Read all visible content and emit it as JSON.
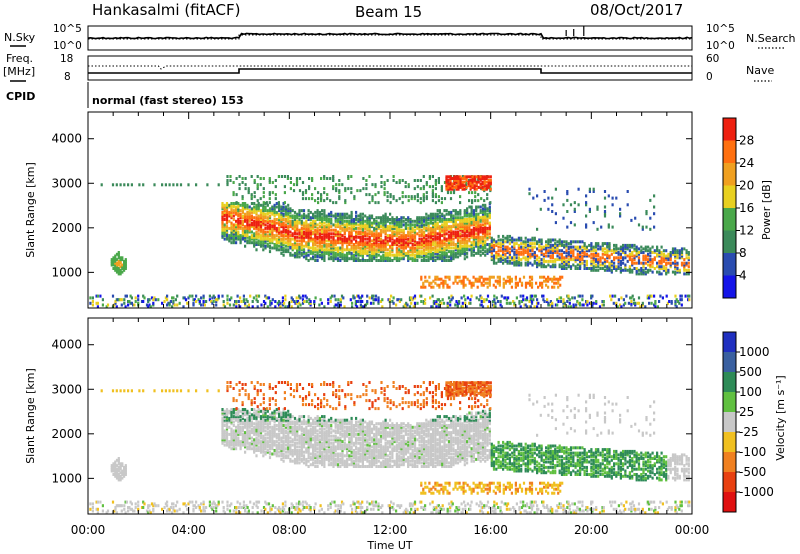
{
  "header": {
    "station": "Hankasalmi (fitACF)",
    "beam": "Beam 15",
    "date": "08/Oct/2017"
  },
  "top_panels": {
    "nsky_label": "N.Sky",
    "nsearch_label": "N.Search",
    "noise_ticks": [
      "10^5",
      "10^0"
    ],
    "freq_label_1": "Freq.",
    "freq_label_2": "[MHz]",
    "freq_ticks": [
      "18",
      "8"
    ],
    "nave_label": "Nave",
    "nave_ticks": [
      "60",
      "0"
    ],
    "cpid_label": "CPID",
    "cpid_text": "normal (fast stereo) 153"
  },
  "chart_data": [
    {
      "type": "heatmap",
      "name_key": "power",
      "ylabel": "Slant Range [km]",
      "xlabel": "",
      "x_ticks": [
        "00:00",
        "04:00",
        "08:00",
        "12:00",
        "16:00",
        "20:00",
        "00:00"
      ],
      "y_ticks": [
        1000,
        2000,
        3000,
        4000
      ],
      "xlim_hours": [
        0,
        24
      ],
      "ylim_km": [
        200,
        4600
      ],
      "colorbar": {
        "label": "Power [dB]",
        "ticks": [
          "4",
          "8",
          "12",
          "16",
          "20",
          "24",
          "28"
        ],
        "colors": [
          "#1515e8",
          "#2a4cb0",
          "#3b8a5a",
          "#4aa84a",
          "#e8d020",
          "#f0a020",
          "#ff7010",
          "#ee2010"
        ]
      },
      "regions": [
        {
          "t0": 5.2,
          "t1": 16.0,
          "r0": 1400,
          "r1": 2500,
          "note": "main backscatter band"
        },
        {
          "t0": 16.0,
          "t1": 23.8,
          "r0": 1100,
          "r1": 1900,
          "note": "evening band"
        },
        {
          "t0": 0.9,
          "t1": 1.5,
          "r0": 1000,
          "r1": 1500,
          "note": "early patch"
        },
        {
          "t0": 14.2,
          "t1": 16.0,
          "r0": 2900,
          "r1": 3200,
          "note": "far range"
        },
        {
          "t0": 13.2,
          "t1": 18.8,
          "r0": 700,
          "r1": 1000,
          "note": "near range"
        }
      ]
    },
    {
      "type": "heatmap",
      "name_key": "velocity",
      "ylabel": "Slant Range [km]",
      "xlabel": "Time UT",
      "x_ticks": [
        "00:00",
        "04:00",
        "08:00",
        "12:00",
        "16:00",
        "20:00",
        "00:00"
      ],
      "y_ticks": [
        1000,
        2000,
        3000,
        4000
      ],
      "xlim_hours": [
        0,
        24
      ],
      "ylim_km": [
        200,
        4600
      ],
      "colorbar": {
        "label": "Velocity [m s⁻¹]",
        "ticks": [
          "1000",
          "500",
          "100",
          "25",
          "-25",
          "-100",
          "-500",
          "-1000"
        ],
        "colors": [
          "#2030c0",
          "#3a60a0",
          "#2e8b57",
          "#60c040",
          "#c8c8c8",
          "#f0c020",
          "#f08020",
          "#e84010",
          "#e01010"
        ]
      }
    }
  ]
}
